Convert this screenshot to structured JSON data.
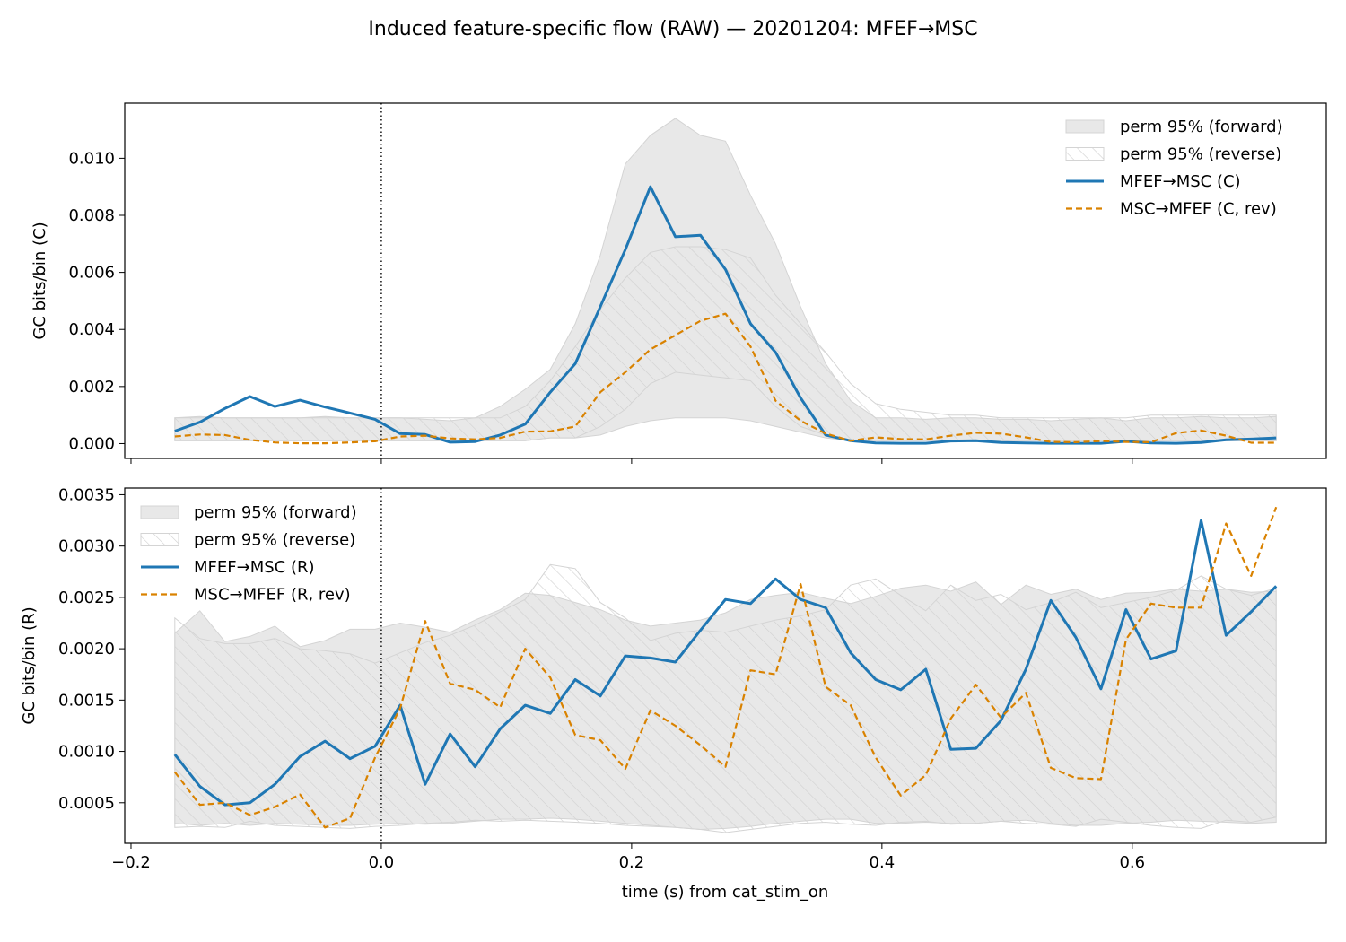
{
  "figure": {
    "title": "Induced feature-specific flow (RAW) — 20201204: MFEF→MSC",
    "xlabel": "time (s) from cat_stim_on"
  },
  "colors": {
    "forward": "#1f77b4",
    "reverse": "#d98200",
    "band_fill": "#e8e8e8",
    "band_edge": "#d4d4d4",
    "hatch": "#cfcfcf"
  },
  "chart_data": [
    {
      "type": "line",
      "panel": "top",
      "ylabel": "GC bits/bin (C)",
      "xlim": [
        -0.205,
        0.755
      ],
      "ylim": [
        -0.00052,
        0.01193
      ],
      "xticks": [
        -0.2,
        0.0,
        0.2,
        0.4,
        0.6
      ],
      "xtick_labels": [
        "",
        "",
        "",
        "",
        ""
      ],
      "yticks": [
        0,
        0.002,
        0.004,
        0.006,
        0.008,
        0.01
      ],
      "ytick_labels": [
        "0.000",
        "0.002",
        "0.004",
        "0.006",
        "0.008",
        "0.010"
      ],
      "vline_x": 0.0,
      "legend_position": "upper right",
      "x": [
        -0.165,
        -0.145,
        -0.125,
        -0.105,
        -0.085,
        -0.065,
        -0.045,
        -0.025,
        -0.005,
        0.015,
        0.035,
        0.055,
        0.075,
        0.095,
        0.115,
        0.135,
        0.155,
        0.175,
        0.195,
        0.215,
        0.235,
        0.255,
        0.275,
        0.295,
        0.315,
        0.335,
        0.355,
        0.375,
        0.395,
        0.415,
        0.435,
        0.455,
        0.475,
        0.495,
        0.515,
        0.535,
        0.555,
        0.575,
        0.595,
        0.615,
        0.635,
        0.655,
        0.675,
        0.695,
        0.715
      ],
      "bands": [
        {
          "name": "perm 95% (forward)",
          "style": "solid",
          "lower": [
            0.0001,
            0.0001,
            0.0001,
            0.0001,
            0.0001,
            0.0001,
            0.0001,
            0.0001,
            0.0001,
            0.0001,
            0.0001,
            0.0001,
            0.0001,
            0.0001,
            0.0001,
            0.0002,
            0.0002,
            0.0003,
            0.0006,
            0.0008,
            0.0009,
            0.0009,
            0.0009,
            0.0008,
            0.0006,
            0.0004,
            0.0002,
            0.0001,
            0.0001,
            0.0001,
            0.0001,
            0.0001,
            0.0001,
            0.0001,
            0.0001,
            0.0001,
            0.0001,
            0.0001,
            0.0001,
            0.0001,
            0.0001,
            0.0001,
            0.0001,
            0.0001,
            0.0001
          ],
          "upper": [
            0.0009,
            0.00095,
            0.0009,
            0.0009,
            0.0009,
            0.0009,
            0.00095,
            0.0009,
            0.0009,
            0.0009,
            0.00085,
            0.0008,
            0.0009,
            0.0013,
            0.0019,
            0.0026,
            0.0042,
            0.0066,
            0.0098,
            0.0108,
            0.0114,
            0.0108,
            0.0106,
            0.0087,
            0.007,
            0.0048,
            0.0028,
            0.0015,
            0.0009,
            0.0009,
            0.00085,
            0.0009,
            0.0009,
            0.00085,
            0.00085,
            0.0008,
            0.00085,
            0.0009,
            0.0008,
            0.0009,
            0.0009,
            0.00095,
            0.0009,
            0.0009,
            0.00095
          ]
        },
        {
          "name": "perm 95% (reverse)",
          "style": "hatched",
          "lower": [
            0.0001,
            0.0001,
            0.0001,
            0.0001,
            0.0001,
            0.0001,
            0.0001,
            0.0001,
            0.0001,
            0.0001,
            0.0001,
            0.0001,
            0.0001,
            0.0001,
            0.0001,
            0.0002,
            0.0002,
            0.0006,
            0.0012,
            0.0021,
            0.0025,
            0.0024,
            0.0023,
            0.0022,
            0.0013,
            0.0006,
            0.0003,
            0.0001,
            0.0001,
            0.0001,
            0.0001,
            0.0001,
            0.0001,
            0.0001,
            0.0001,
            0.0001,
            0.0001,
            0.0001,
            0.0001,
            0.0001,
            0.0001,
            0.0001,
            0.0001,
            0.0001,
            0.0001
          ],
          "upper": [
            0.0009,
            0.0009,
            0.0009,
            0.0009,
            0.0009,
            0.0009,
            0.0009,
            0.0009,
            0.0009,
            0.0009,
            0.0009,
            0.0009,
            0.0009,
            0.0009,
            0.0013,
            0.0022,
            0.0034,
            0.0047,
            0.0058,
            0.0067,
            0.0069,
            0.0069,
            0.0068,
            0.0065,
            0.0052,
            0.0042,
            0.0032,
            0.0021,
            0.0014,
            0.0012,
            0.0011,
            0.001,
            0.001,
            0.0009,
            0.0009,
            0.0009,
            0.0009,
            0.0009,
            0.0009,
            0.001,
            0.001,
            0.001,
            0.001,
            0.001,
            0.001
          ]
        }
      ],
      "series": [
        {
          "name": "MFEF→MSC (C)",
          "style": "solid",
          "values": [
            0.00044,
            0.00075,
            0.00123,
            0.00165,
            0.0013,
            0.00152,
            0.00128,
            0.00107,
            0.00085,
            0.00035,
            0.00032,
            5e-05,
            7e-05,
            0.0003,
            0.00068,
            0.0018,
            0.0028,
            0.0048,
            0.0068,
            0.009,
            0.00725,
            0.0073,
            0.0061,
            0.0042,
            0.0032,
            0.0016,
            0.0003,
            0.0001,
            2e-05,
            1e-05,
            1e-05,
            9e-05,
            0.0001,
            4e-05,
            2e-05,
            1e-05,
            1e-05,
            1e-05,
            8e-05,
            2e-05,
            1e-05,
            4e-05,
            0.00013,
            0.00016,
            0.0002
          ]
        },
        {
          "name": "MSC→MFEF (C, rev)",
          "style": "dashed",
          "values": [
            0.00025,
            0.00032,
            0.0003,
            0.00013,
            4e-05,
            1e-05,
            1e-05,
            4e-05,
            8e-05,
            0.00025,
            0.00028,
            0.00018,
            0.00015,
            0.0002,
            0.00042,
            0.00043,
            0.0006,
            0.0018,
            0.0025,
            0.0033,
            0.0038,
            0.0043,
            0.00455,
            0.0034,
            0.0015,
            0.0008,
            0.00035,
            0.0001,
            0.00022,
            0.00016,
            0.00015,
            0.00028,
            0.00038,
            0.00035,
            0.00022,
            6e-05,
            5e-05,
            9e-05,
            6e-05,
            5e-05,
            0.00037,
            0.00046,
            0.00028,
            3e-05,
            3e-05
          ]
        }
      ]
    },
    {
      "type": "line",
      "panel": "bottom",
      "ylabel": "GC bits/bin (R)",
      "xlim": [
        -0.205,
        0.755
      ],
      "ylim": [
        0.000105,
        0.003565
      ],
      "xticks": [
        -0.2,
        0.0,
        0.2,
        0.4,
        0.6
      ],
      "xtick_labels": [
        "−0.2",
        "0.0",
        "0.2",
        "0.4",
        "0.6"
      ],
      "yticks": [
        0.0005,
        0.001,
        0.0015,
        0.002,
        0.0025,
        0.003,
        0.0035
      ],
      "ytick_labels": [
        "0.0005",
        "0.0010",
        "0.0015",
        "0.0020",
        "0.0025",
        "0.0030",
        "0.0035"
      ],
      "vline_x": 0.0,
      "legend_position": "upper left",
      "x": [
        -0.165,
        -0.145,
        -0.125,
        -0.105,
        -0.085,
        -0.065,
        -0.045,
        -0.025,
        -0.005,
        0.015,
        0.035,
        0.055,
        0.075,
        0.095,
        0.115,
        0.135,
        0.155,
        0.175,
        0.195,
        0.215,
        0.235,
        0.255,
        0.275,
        0.295,
        0.315,
        0.335,
        0.355,
        0.375,
        0.395,
        0.415,
        0.435,
        0.455,
        0.475,
        0.495,
        0.515,
        0.535,
        0.555,
        0.575,
        0.595,
        0.615,
        0.635,
        0.655,
        0.675,
        0.695,
        0.715
      ],
      "bands": [
        {
          "name": "perm 95% (forward)",
          "style": "solid",
          "lower": [
            0.0003,
            0.00028,
            0.0003,
            0.00028,
            0.0003,
            0.00029,
            0.00028,
            0.00028,
            0.00029,
            0.0003,
            0.00029,
            0.0003,
            0.00032,
            0.00034,
            0.00034,
            0.00035,
            0.00034,
            0.00032,
            0.0003,
            0.00028,
            0.00026,
            0.00024,
            0.00025,
            0.00027,
            0.0003,
            0.00032,
            0.00034,
            0.00034,
            0.0003,
            0.0003,
            0.00031,
            0.0003,
            0.0003,
            0.00032,
            0.00033,
            0.0003,
            0.00028,
            0.00028,
            0.0003,
            0.00031,
            0.00033,
            0.00032,
            0.00031,
            0.0003,
            0.00031
          ],
          "upper": [
            0.00215,
            0.00237,
            0.00207,
            0.00212,
            0.00222,
            0.00202,
            0.00208,
            0.00219,
            0.00219,
            0.00225,
            0.00221,
            0.00216,
            0.00228,
            0.00238,
            0.00254,
            0.00252,
            0.00245,
            0.00238,
            0.00228,
            0.00222,
            0.00225,
            0.00228,
            0.00235,
            0.00248,
            0.00252,
            0.00255,
            0.00249,
            0.00244,
            0.00251,
            0.00259,
            0.00262,
            0.00256,
            0.00265,
            0.00243,
            0.00262,
            0.00253,
            0.00258,
            0.00248,
            0.00254,
            0.00255,
            0.00258,
            0.00256,
            0.00258,
            0.00255,
            0.00256
          ]
        },
        {
          "name": "perm 95% (reverse)",
          "style": "hatched",
          "lower": [
            0.00026,
            0.00027,
            0.00026,
            0.00032,
            0.00028,
            0.00027,
            0.00026,
            0.00025,
            0.00027,
            0.00028,
            0.0003,
            0.00031,
            0.00033,
            0.00032,
            0.00033,
            0.00032,
            0.00031,
            0.0003,
            0.00028,
            0.00027,
            0.00026,
            0.00024,
            0.00021,
            0.00024,
            0.00027,
            0.0003,
            0.00031,
            0.00029,
            0.00028,
            0.00031,
            0.00032,
            0.00029,
            0.0003,
            0.00032,
            0.0003,
            0.00029,
            0.00027,
            0.00034,
            0.00031,
            0.00028,
            0.00026,
            0.00025,
            0.00033,
            0.00031,
            0.00036
          ],
          "upper": [
            0.0023,
            0.0021,
            0.00205,
            0.00205,
            0.0021,
            0.002,
            0.00198,
            0.00195,
            0.00186,
            0.00196,
            0.00206,
            0.00213,
            0.00223,
            0.00236,
            0.00248,
            0.00282,
            0.00278,
            0.00245,
            0.0023,
            0.00208,
            0.00215,
            0.00218,
            0.00216,
            0.00222,
            0.00228,
            0.00232,
            0.00238,
            0.00262,
            0.00268,
            0.00252,
            0.00237,
            0.00262,
            0.00247,
            0.00253,
            0.00238,
            0.00245,
            0.00255,
            0.0024,
            0.00245,
            0.0025,
            0.00257,
            0.00271,
            0.00258,
            0.00252,
            0.00259
          ]
        }
      ],
      "series": [
        {
          "name": "MFEF→MSC (R)",
          "style": "solid",
          "values": [
            0.00097,
            0.00066,
            0.00048,
            0.0005,
            0.00068,
            0.00095,
            0.0011,
            0.00093,
            0.00105,
            0.00145,
            0.00068,
            0.00117,
            0.00085,
            0.00122,
            0.00145,
            0.00137,
            0.0017,
            0.00154,
            0.00193,
            0.00191,
            0.00187,
            0.00218,
            0.00248,
            0.00244,
            0.00268,
            0.00248,
            0.0024,
            0.00196,
            0.0017,
            0.0016,
            0.0018,
            0.00102,
            0.00103,
            0.0013,
            0.0018,
            0.00247,
            0.00211,
            0.00161,
            0.00238,
            0.0019,
            0.00198,
            0.00325,
            0.00213,
            0.00236,
            0.00261
          ]
        },
        {
          "name": "MSC→MFEF (R, rev)",
          "style": "dashed",
          "values": [
            0.0008,
            0.00048,
            0.0005,
            0.00038,
            0.00046,
            0.00058,
            0.00026,
            0.00035,
            0.00094,
            0.00142,
            0.00227,
            0.00166,
            0.0016,
            0.00143,
            0.002,
            0.00172,
            0.00116,
            0.00111,
            0.00083,
            0.0014,
            0.00125,
            0.00106,
            0.00085,
            0.00179,
            0.00175,
            0.00263,
            0.00163,
            0.00145,
            0.00094,
            0.00057,
            0.00077,
            0.00132,
            0.00165,
            0.00133,
            0.00157,
            0.00084,
            0.00074,
            0.00073,
            0.00209,
            0.00244,
            0.0024,
            0.0024,
            0.00322,
            0.00271,
            0.00338
          ]
        }
      ]
    }
  ]
}
